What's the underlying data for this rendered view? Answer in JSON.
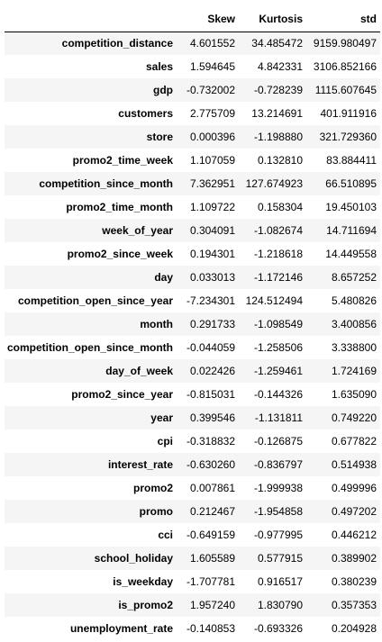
{
  "table": {
    "index_header": "",
    "columns": [
      "Skew",
      "Kurtosis",
      "std"
    ],
    "rows": [
      {
        "label": "competition_distance",
        "skew": "4.601552",
        "kurtosis": "34.485472",
        "std": "9159.980497"
      },
      {
        "label": "sales",
        "skew": "1.594645",
        "kurtosis": "4.842331",
        "std": "3106.852166"
      },
      {
        "label": "gdp",
        "skew": "-0.732002",
        "kurtosis": "-0.728239",
        "std": "1115.607645"
      },
      {
        "label": "customers",
        "skew": "2.775709",
        "kurtosis": "13.214691",
        "std": "401.911916"
      },
      {
        "label": "store",
        "skew": "0.000396",
        "kurtosis": "-1.198880",
        "std": "321.729360"
      },
      {
        "label": "promo2_time_week",
        "skew": "1.107059",
        "kurtosis": "0.132810",
        "std": "83.884411"
      },
      {
        "label": "competition_since_month",
        "skew": "7.362951",
        "kurtosis": "127.674923",
        "std": "66.510895"
      },
      {
        "label": "promo2_time_month",
        "skew": "1.109722",
        "kurtosis": "0.158304",
        "std": "19.450103"
      },
      {
        "label": "week_of_year",
        "skew": "0.304091",
        "kurtosis": "-1.082674",
        "std": "14.711694"
      },
      {
        "label": "promo2_since_week",
        "skew": "0.194301",
        "kurtosis": "-1.218618",
        "std": "14.449558"
      },
      {
        "label": "day",
        "skew": "0.033013",
        "kurtosis": "-1.172146",
        "std": "8.657252"
      },
      {
        "label": "competition_open_since_year",
        "skew": "-7.234301",
        "kurtosis": "124.512494",
        "std": "5.480826"
      },
      {
        "label": "month",
        "skew": "0.291733",
        "kurtosis": "-1.098549",
        "std": "3.400856"
      },
      {
        "label": "competition_open_since_month",
        "skew": "-0.044059",
        "kurtosis": "-1.258506",
        "std": "3.338800"
      },
      {
        "label": "day_of_week",
        "skew": "0.022426",
        "kurtosis": "-1.259461",
        "std": "1.724169"
      },
      {
        "label": "promo2_since_year",
        "skew": "-0.815031",
        "kurtosis": "-0.144326",
        "std": "1.635090"
      },
      {
        "label": "year",
        "skew": "0.399546",
        "kurtosis": "-1.131811",
        "std": "0.749220"
      },
      {
        "label": "cpi",
        "skew": "-0.318832",
        "kurtosis": "-0.126875",
        "std": "0.677822"
      },
      {
        "label": "interest_rate",
        "skew": "-0.630260",
        "kurtosis": "-0.836797",
        "std": "0.514938"
      },
      {
        "label": "promo2",
        "skew": "0.007861",
        "kurtosis": "-1.999938",
        "std": "0.499996"
      },
      {
        "label": "promo",
        "skew": "0.212467",
        "kurtosis": "-1.954858",
        "std": "0.497202"
      },
      {
        "label": "cci",
        "skew": "-0.649159",
        "kurtosis": "-0.977995",
        "std": "0.446212"
      },
      {
        "label": "school_holiday",
        "skew": "1.605589",
        "kurtosis": "0.577915",
        "std": "0.389902"
      },
      {
        "label": "is_weekday",
        "skew": "-1.707781",
        "kurtosis": "0.916517",
        "std": "0.380239"
      },
      {
        "label": "is_promo2",
        "skew": "1.957240",
        "kurtosis": "1.830790",
        "std": "0.357353"
      },
      {
        "label": "unemployment_rate",
        "skew": "-0.140853",
        "kurtosis": "-0.693326",
        "std": "0.204928"
      }
    ]
  }
}
